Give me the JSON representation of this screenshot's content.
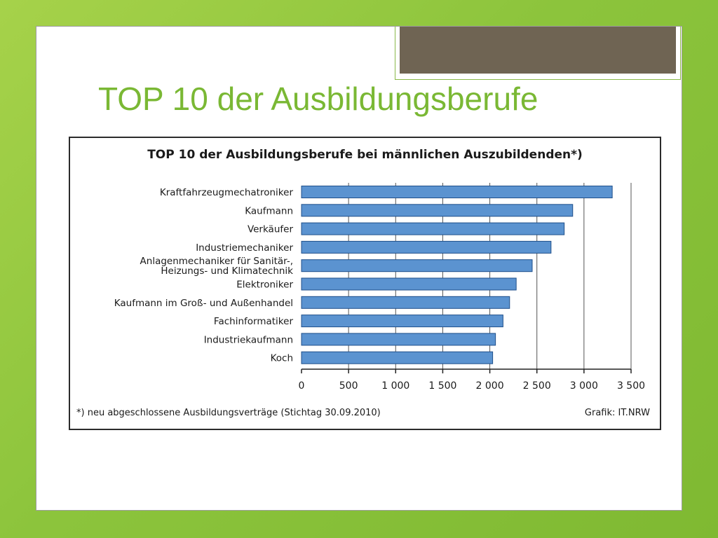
{
  "slide": {
    "title": "TOP 10 der Ausbildungsberufe"
  },
  "chart_data": {
    "type": "bar",
    "orientation": "horizontal",
    "title": "TOP 10 der Ausbildungsberufe bei männlichen Auszubildenden*)",
    "categories": [
      [
        "Kraftfahrzeugmechatroniker"
      ],
      [
        "Kaufmann"
      ],
      [
        "Verkäufer"
      ],
      [
        "Industriemechaniker"
      ],
      [
        "Anlagenmechaniker für Sanitär-,",
        "Heizungs- und Klimatechnik"
      ],
      [
        "Elektroniker"
      ],
      [
        "Kaufmann im Groß- und Außenhandel"
      ],
      [
        "Fachinformatiker"
      ],
      [
        "Industriekaufmann"
      ],
      [
        "Koch"
      ]
    ],
    "values": [
      3300,
      2880,
      2790,
      2650,
      2450,
      2280,
      2210,
      2140,
      2060,
      2030
    ],
    "xlim": [
      0,
      3500
    ],
    "xticks": [
      0,
      500,
      1000,
      1500,
      2000,
      2500,
      3000,
      3500
    ],
    "xtick_labels": [
      "0",
      "500",
      "1 000",
      "1 500",
      "2 000",
      "2 500",
      "3 000",
      "3 500"
    ],
    "grid": "vertical",
    "bar_color": "#5b93d0",
    "bar_edge_color": "#1f4f8a",
    "footnote": "*) neu abgeschlossene Ausbildungsverträge (Stichtag 30.09.2010)",
    "source": "Grafik: IT.NRW"
  }
}
